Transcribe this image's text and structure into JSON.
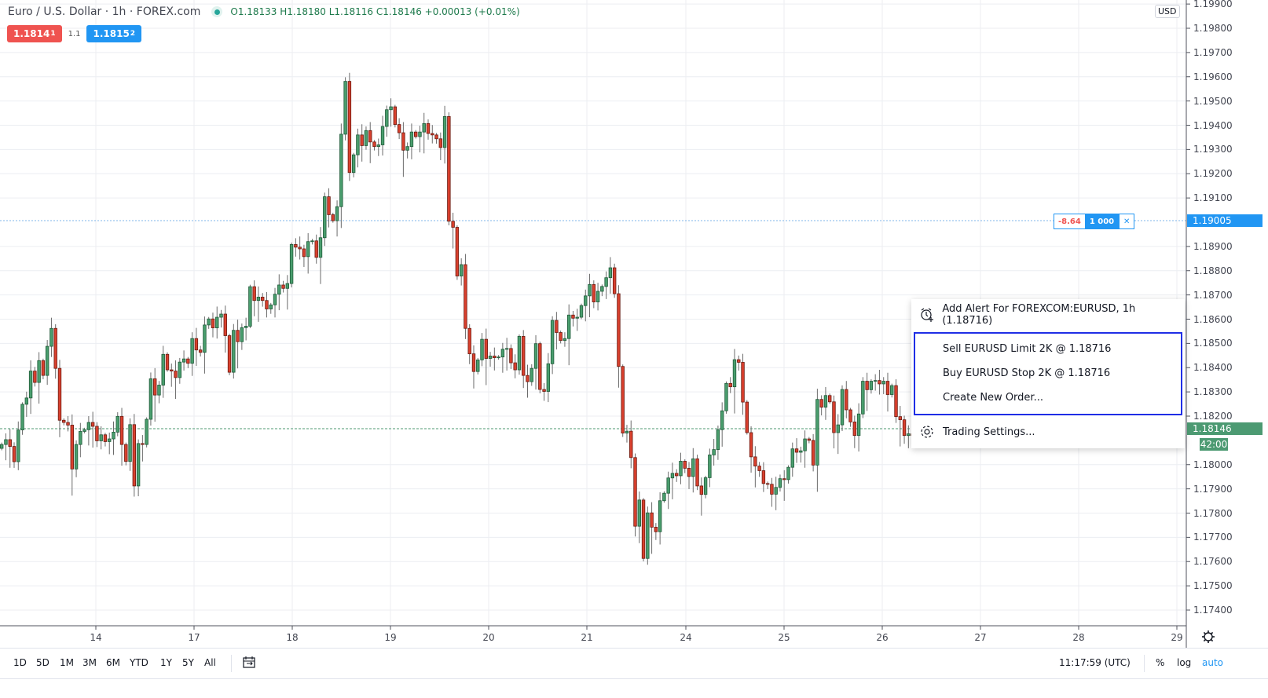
{
  "header": {
    "title": "Euro / U.S. Dollar · 1h · FOREX.com",
    "ohlc": "O1.18133 H1.18180 L1.18116 C1.18146 +0.00013 (+0.01%)",
    "sell_price": "1.1814",
    "sell_price_sup": "1",
    "spread": "1.1",
    "buy_price": "1.1815",
    "buy_price_sup": "2"
  },
  "price_axis": {
    "currency": "USD",
    "labels": [
      "1.19900",
      "1.19800",
      "1.19700",
      "1.19600",
      "1.19500",
      "1.19400",
      "1.19300",
      "1.19200",
      "1.19100",
      "1.18900",
      "1.18800",
      "1.18700",
      "1.18600",
      "1.18500",
      "1.18400",
      "1.18300",
      "1.18200",
      "1.18000",
      "1.17900",
      "1.17800",
      "1.17700",
      "1.17600",
      "1.17500",
      "1.17400"
    ],
    "order_price_tag": "1.19005",
    "last_price_tag": "1.18146",
    "countdown": "42:00"
  },
  "order_line": {
    "pnl": "-8.64",
    "quantity": "1 000",
    "close_icon": "close-icon"
  },
  "context_menu": {
    "add_alert": "Add Alert For FOREXCOM:EURUSD, 1h (1.18716)",
    "sell_limit": "Sell EURUSD Limit 2K @ 1.18716",
    "buy_stop": "Buy EURUSD Stop 2K @ 1.18716",
    "create_order": "Create New Order...",
    "trading_settings": "Trading Settings..."
  },
  "bottom_bar": {
    "ranges": [
      "1D",
      "5D",
      "1M",
      "3M",
      "6M",
      "YTD",
      "1Y",
      "5Y",
      "All"
    ],
    "time": "11:17:59 (UTC)",
    "percent": "%",
    "log": "log",
    "auto": "auto"
  },
  "colors": {
    "up": "#4a9e6e",
    "down": "#d9402e",
    "accent": "#2196f3",
    "sell": "#ef5350",
    "last_price": "#4c9a72"
  },
  "chart_data": {
    "type": "candlestick",
    "title": "Euro / U.S. Dollar · 1h · FOREX.com",
    "interval": "1h",
    "x_tick_labels": [
      "14",
      "17",
      "18",
      "19",
      "20",
      "21",
      "24",
      "25",
      "26",
      "27",
      "28",
      "29"
    ],
    "ylim": [
      1.1737,
      1.199
    ],
    "grid": true,
    "first_open": 1.18067,
    "close": [
      1.18083,
      1.18103,
      1.18075,
      1.18012,
      1.18143,
      1.18249,
      1.18275,
      1.18386,
      1.18339,
      1.18429,
      1.18368,
      1.18488,
      1.18562,
      1.18397,
      1.18183,
      1.18174,
      1.18163,
      1.17982,
      1.18083,
      1.18137,
      1.18144,
      1.18174,
      1.18158,
      1.18098,
      1.18123,
      1.18095,
      1.18106,
      1.18134,
      1.18199,
      1.18083,
      1.18013,
      1.18165,
      1.17912,
      1.18087,
      1.18083,
      1.18187,
      1.18354,
      1.18287,
      1.18328,
      1.18455,
      1.18391,
      1.18386,
      1.18359,
      1.18423,
      1.18436,
      1.18418,
      1.1852,
      1.18473,
      1.18463,
      1.18576,
      1.18601,
      1.18564,
      1.18608,
      1.18621,
      1.18532,
      1.18381,
      1.18554,
      1.18507,
      1.18565,
      1.18571,
      1.18734,
      1.18677,
      1.18691,
      1.18677,
      1.18642,
      1.18659,
      1.18703,
      1.18741,
      1.18727,
      1.18747,
      1.18908,
      1.18897,
      1.1889,
      1.18858,
      1.1892,
      1.18923,
      1.18855,
      1.18936,
      1.19105,
      1.19031,
      1.19006,
      1.19064,
      1.19363,
      1.19581,
      1.19205,
      1.19278,
      1.1936,
      1.19316,
      1.19378,
      1.19331,
      1.19312,
      1.19319,
      1.19395,
      1.19464,
      1.19476,
      1.19403,
      1.19369,
      1.19297,
      1.19312,
      1.19372,
      1.19353,
      1.19372,
      1.19407,
      1.19366,
      1.1936,
      1.19344,
      1.19308,
      1.19436,
      1.19004,
      1.18979,
      1.18778,
      1.18825,
      1.18562,
      1.18457,
      1.18384,
      1.18432,
      1.18517,
      1.18438,
      1.18448,
      1.18441,
      1.18444,
      1.18476,
      1.18479,
      1.1842,
      1.18391,
      1.18529,
      1.18368,
      1.18342,
      1.18397,
      1.18499,
      1.1831,
      1.18302,
      1.18416,
      1.18595,
      1.18545,
      1.18512,
      1.1852,
      1.18617,
      1.18604,
      1.18608,
      1.18656,
      1.18696,
      1.18743,
      1.18671,
      1.18715,
      1.18735,
      1.18771,
      1.18812,
      1.18705,
      1.18405,
      1.1813,
      1.18138,
      1.18029,
      1.17746,
      1.17854,
      1.17613,
      1.17801,
      1.17742,
      1.17723,
      1.17851,
      1.17882,
      1.17945,
      1.17964,
      1.17954,
      1.18014,
      1.17985,
      1.17951,
      1.18024,
      1.17912,
      1.17877,
      1.17946,
      1.1804,
      1.18062,
      1.18144,
      1.18222,
      1.18335,
      1.18321,
      1.18433,
      1.18422,
      1.18258,
      1.18132,
      1.18032,
      1.17994,
      1.17975,
      1.17922,
      1.17919,
      1.17878,
      1.17906,
      1.17942,
      1.17938,
      1.17989,
      1.18065,
      1.18051,
      1.18057,
      1.18106,
      1.181,
      1.17998,
      1.18269,
      1.18237,
      1.18285,
      1.18259,
      1.18132,
      1.18164,
      1.1831,
      1.18226,
      1.18176,
      1.1812,
      1.18209,
      1.18344,
      1.18309,
      1.18344,
      1.18347,
      1.18333,
      1.18344,
      1.18289,
      1.18326,
      1.18198,
      1.18185,
      1.1812,
      1.18127,
      1.1812,
      1.18146
    ],
    "last": {
      "open": 1.18133,
      "high": 1.1818,
      "low": 1.18116,
      "close": 1.18146
    },
    "horizontal_lines": [
      {
        "name": "order",
        "price": 1.19005
      },
      {
        "name": "last-price",
        "price": 1.18146
      }
    ]
  }
}
